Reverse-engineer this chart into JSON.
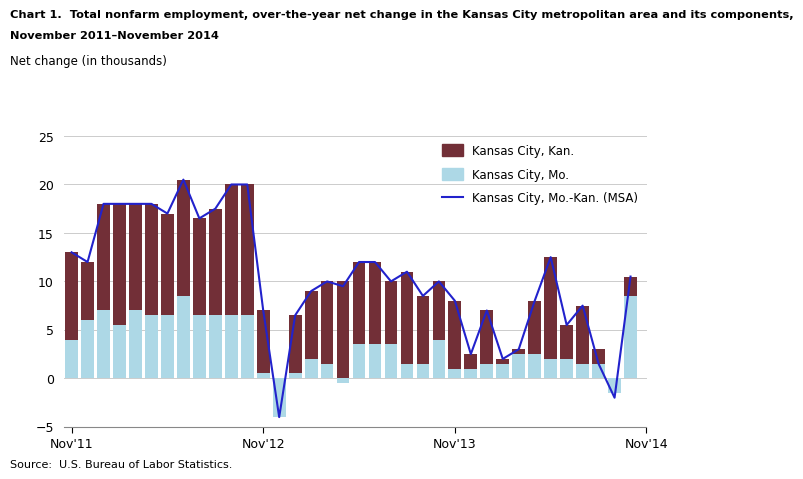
{
  "title_line1": "Chart 1.  Total nonfarm employment, over-the-year net change in the Kansas City metropolitan area and its components,",
  "title_line2": "November 2011–November 2014",
  "ylabel": "Net change (in thousands)",
  "xlabel_ticks": [
    "Nov'11",
    "Nov'12",
    "Nov'13",
    "Nov'14"
  ],
  "xlabel_tick_positions": [
    0,
    12,
    24,
    36
  ],
  "source": "Source:  U.S. Bureau of Labor Statistics.",
  "ylim": [
    -5,
    25
  ],
  "yticks": [
    -5,
    0,
    5,
    10,
    15,
    20,
    25
  ],
  "color_mo": "#ADD8E6",
  "color_kan": "#722F37",
  "color_msa_line": "#2222CC",
  "legend_labels": [
    "Kansas City, Kan.",
    "Kansas City, Mo.",
    "Kansas City, Mo.-Kan. (MSA)"
  ],
  "mo_values": [
    4.0,
    6.0,
    7.0,
    5.5,
    7.0,
    6.5,
    6.5,
    8.5,
    6.5,
    6.5,
    6.5,
    6.5,
    0.5,
    -4.0,
    0.5,
    2.0,
    1.5,
    -0.5,
    3.5,
    3.5,
    3.5,
    1.5,
    1.5,
    4.0,
    1.0,
    1.0,
    1.5,
    1.5,
    2.5,
    2.5,
    2.0,
    2.0,
    1.5,
    3.0,
    -1.5,
    8.5
  ],
  "kan_values": [
    9.0,
    6.0,
    11.0,
    12.5,
    11.0,
    11.5,
    10.5,
    12.0,
    10.0,
    11.0,
    13.5,
    13.5,
    6.5,
    0.0,
    6.0,
    7.0,
    8.5,
    10.0,
    8.5,
    8.5,
    6.5,
    9.5,
    7.0,
    6.0,
    7.0,
    1.5,
    5.5,
    0.5,
    0.5,
    5.5,
    10.5,
    3.5,
    6.0,
    -1.5,
    0.0,
    2.0
  ],
  "msa_values": [
    13.0,
    12.0,
    18.0,
    18.0,
    18.0,
    18.0,
    17.0,
    20.5,
    16.5,
    17.5,
    20.0,
    20.0,
    7.0,
    -4.0,
    6.5,
    9.0,
    10.0,
    9.5,
    12.0,
    12.0,
    10.0,
    11.0,
    8.5,
    10.0,
    8.0,
    2.5,
    7.0,
    2.0,
    3.0,
    8.0,
    12.5,
    5.5,
    7.5,
    1.5,
    -2.0,
    10.5
  ]
}
